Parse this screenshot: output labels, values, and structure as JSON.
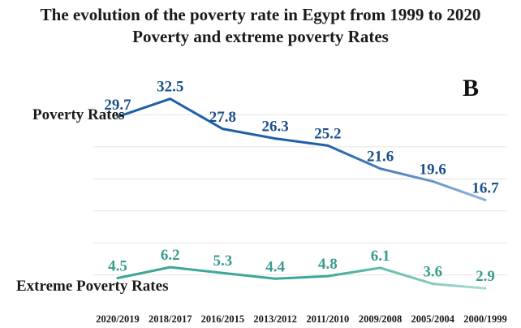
{
  "title_line1": "The evolution of the poverty rate in Egypt from 1999 to 2020",
  "title_line2": "Poverty and extreme poverty Rates",
  "panel_letter": "B",
  "chart_data": {
    "type": "line",
    "categories": [
      "2020/2019",
      "2018/2017",
      "2016/2015",
      "2013/2012",
      "2011/2010",
      "2009/2008",
      "2005/2004",
      "2000/1999"
    ],
    "series": [
      {
        "name": "Poverty Rates",
        "values": [
          29.7,
          32.5,
          27.8,
          26.3,
          25.2,
          21.6,
          19.6,
          16.7
        ],
        "color": "#1f5fa8",
        "fade_color": "#8fb3da",
        "label_color": "#1b4f8c"
      },
      {
        "name": "Extreme Poverty Rates",
        "values": [
          4.5,
          6.2,
          5.3,
          4.4,
          4.8,
          6.1,
          3.6,
          2.9
        ],
        "color": "#3ca79a",
        "fade_color": "#a9dcd3",
        "label_color": "#3a9c8e"
      }
    ],
    "ylim": [
      0,
      35
    ],
    "grid": true,
    "xlabel": "",
    "ylabel": ""
  }
}
